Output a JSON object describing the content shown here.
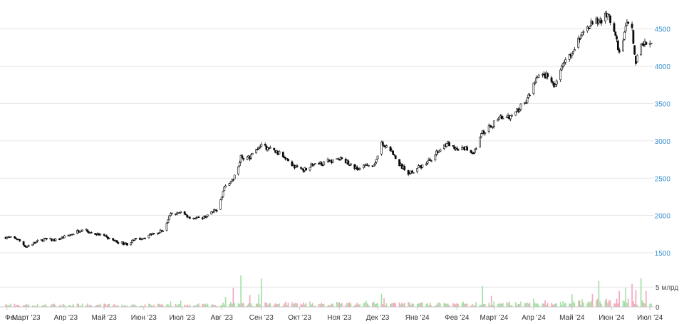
{
  "chart_data": [
    {
      "type": "candlestick",
      "title": "",
      "xlabel": "",
      "ylabel": "",
      "ylim": [
        1300,
        4850
      ],
      "yticks": [
        1500,
        2000,
        2500,
        3000,
        3500,
        4000,
        4500
      ],
      "grid": true,
      "x_tick_labels": [
        "Фе…",
        "Март '23",
        "Апр '23",
        "Май '23",
        "Июн '23",
        "Июл '23",
        "Авг '23",
        "Сен '23",
        "Окт '23",
        "Ноя '23",
        "Дек '23",
        "Янв '24",
        "Фев '24",
        "Март '24",
        "Апр '24",
        "Май '24",
        "Июн '24",
        "Июл '24"
      ],
      "x_range": [
        "2023-02-13",
        "2024-07-02"
      ],
      "close_path": [
        [
          "2023-02-13",
          1710
        ],
        [
          "2023-02-22",
          1690
        ],
        [
          "2023-03-01",
          1580
        ],
        [
          "2023-03-08",
          1640
        ],
        [
          "2023-03-15",
          1680
        ],
        [
          "2023-03-24",
          1670
        ],
        [
          "2023-04-03",
          1730
        ],
        [
          "2023-04-14",
          1820
        ],
        [
          "2023-04-20",
          1770
        ],
        [
          "2023-04-28",
          1740
        ],
        [
          "2023-05-05",
          1690
        ],
        [
          "2023-05-12",
          1640
        ],
        [
          "2023-05-19",
          1620
        ],
        [
          "2023-05-26",
          1680
        ],
        [
          "2023-06-02",
          1710
        ],
        [
          "2023-06-09",
          1770
        ],
        [
          "2023-06-16",
          1800
        ],
        [
          "2023-06-22",
          2010
        ],
        [
          "2023-06-30",
          2040
        ],
        [
          "2023-07-07",
          1980
        ],
        [
          "2023-07-14",
          1960
        ],
        [
          "2023-07-21",
          2000
        ],
        [
          "2023-07-28",
          2080
        ],
        [
          "2023-08-04",
          2410
        ],
        [
          "2023-08-10",
          2480
        ],
        [
          "2023-08-16",
          2780
        ],
        [
          "2023-08-23",
          2780
        ],
        [
          "2023-08-30",
          2930
        ],
        [
          "2023-09-06",
          2900
        ],
        [
          "2023-09-13",
          2850
        ],
        [
          "2023-09-20",
          2780
        ],
        [
          "2023-09-27",
          2650
        ],
        [
          "2023-10-04",
          2620
        ],
        [
          "2023-10-11",
          2680
        ],
        [
          "2023-10-18",
          2700
        ],
        [
          "2023-10-25",
          2730
        ],
        [
          "2023-11-01",
          2760
        ],
        [
          "2023-11-08",
          2710
        ],
        [
          "2023-11-15",
          2620
        ],
        [
          "2023-11-22",
          2660
        ],
        [
          "2023-11-29",
          2700
        ],
        [
          "2023-12-04",
          2960
        ],
        [
          "2023-12-11",
          2880
        ],
        [
          "2023-12-18",
          2680
        ],
        [
          "2023-12-25",
          2570
        ],
        [
          "2024-01-03",
          2650
        ],
        [
          "2024-01-10",
          2730
        ],
        [
          "2024-01-17",
          2850
        ],
        [
          "2024-01-24",
          2980
        ],
        [
          "2024-01-31",
          2870
        ],
        [
          "2024-02-07",
          2900
        ],
        [
          "2024-02-14",
          2850
        ],
        [
          "2024-02-21",
          3110
        ],
        [
          "2024-02-28",
          3200
        ],
        [
          "2024-03-06",
          3340
        ],
        [
          "2024-03-13",
          3310
        ],
        [
          "2024-03-20",
          3420
        ],
        [
          "2024-03-27",
          3550
        ],
        [
          "2024-04-03",
          3830
        ],
        [
          "2024-04-10",
          3880
        ],
        [
          "2024-04-17",
          3760
        ],
        [
          "2024-04-24",
          4000
        ],
        [
          "2024-05-01",
          4180
        ],
        [
          "2024-05-08",
          4400
        ],
        [
          "2024-05-15",
          4560
        ],
        [
          "2024-05-22",
          4610
        ],
        [
          "2024-05-29",
          4680
        ],
        [
          "2024-06-03",
          4500
        ],
        [
          "2024-06-07",
          4150
        ],
        [
          "2024-06-12",
          4550
        ],
        [
          "2024-06-17",
          4500
        ],
        [
          "2024-06-20",
          4050
        ],
        [
          "2024-06-24",
          4300
        ],
        [
          "2024-06-28",
          4330
        ],
        [
          "2024-07-02",
          4280
        ]
      ]
    },
    {
      "type": "bar",
      "title": "",
      "ylabel": "",
      "ylim": [
        0,
        9
      ],
      "yticks": [
        0,
        5
      ],
      "ytick_labels": [
        "0",
        "5 млрд"
      ],
      "grid": true,
      "spikes": [
        [
          "2023-04-14",
          0.8
        ],
        [
          "2023-06-22",
          1.4
        ],
        [
          "2023-06-30",
          1.6
        ],
        [
          "2023-08-04",
          2.5
        ],
        [
          "2023-08-10",
          4.8
        ],
        [
          "2023-08-16",
          8.0
        ],
        [
          "2023-08-23",
          3.0
        ],
        [
          "2023-08-30",
          3.2
        ],
        [
          "2023-09-01",
          7.2
        ],
        [
          "2023-09-20",
          1.3
        ],
        [
          "2023-11-22",
          1.5
        ],
        [
          "2023-12-04",
          3.3
        ],
        [
          "2023-12-06",
          2.2
        ],
        [
          "2024-02-21",
          5.3
        ],
        [
          "2024-02-28",
          2.8
        ],
        [
          "2024-04-01",
          2.1
        ],
        [
          "2024-04-10",
          1.7
        ],
        [
          "2024-05-01",
          3.2
        ],
        [
          "2024-05-17",
          3.3
        ],
        [
          "2024-05-22",
          6.6
        ],
        [
          "2024-06-07",
          4.0
        ],
        [
          "2024-06-12",
          4.8
        ],
        [
          "2024-06-17",
          5.8
        ],
        [
          "2024-06-20",
          4.3
        ],
        [
          "2024-06-24",
          7.2
        ],
        [
          "2024-06-28",
          4.0
        ]
      ]
    }
  ],
  "colors": {
    "up": "#ffffff",
    "down": "#0a0a0a",
    "wick": "#0a0a0a",
    "accent": "#3a8fd0",
    "volume_up": "#9fe0a2",
    "volume_down": "#f2a6b8",
    "grid": "#e6e6e6",
    "axis_text": "#3a8fd0"
  }
}
